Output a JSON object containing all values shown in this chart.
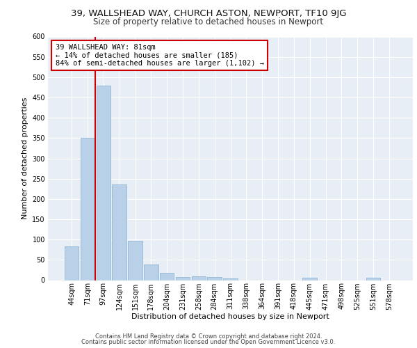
{
  "title1": "39, WALLSHEAD WAY, CHURCH ASTON, NEWPORT, TF10 9JG",
  "title2": "Size of property relative to detached houses in Newport",
  "xlabel": "Distribution of detached houses by size in Newport",
  "ylabel": "Number of detached properties",
  "categories": [
    "44sqm",
    "71sqm",
    "97sqm",
    "124sqm",
    "151sqm",
    "178sqm",
    "204sqm",
    "231sqm",
    "258sqm",
    "284sqm",
    "311sqm",
    "338sqm",
    "364sqm",
    "391sqm",
    "418sqm",
    "445sqm",
    "471sqm",
    "498sqm",
    "525sqm",
    "551sqm",
    "578sqm"
  ],
  "values": [
    83,
    350,
    480,
    235,
    97,
    38,
    18,
    8,
    9,
    8,
    5,
    0,
    0,
    0,
    0,
    6,
    0,
    0,
    0,
    6,
    0
  ],
  "bar_color": "#b8d0e8",
  "bar_edge_color": "#8ab0ce",
  "vline_x": 1.5,
  "vline_color": "#cc0000",
  "annotation_line1": "39 WALLSHEAD WAY: 81sqm",
  "annotation_line2": "← 14% of detached houses are smaller (185)",
  "annotation_line3": "84% of semi-detached houses are larger (1,102) →",
  "annotation_box_color": "#ffffff",
  "annotation_box_edgecolor": "#cc0000",
  "ylim": [
    0,
    600
  ],
  "yticks": [
    0,
    50,
    100,
    150,
    200,
    250,
    300,
    350,
    400,
    450,
    500,
    550,
    600
  ],
  "background_color": "#e8eef5",
  "footnote1": "Contains HM Land Registry data © Crown copyright and database right 2024.",
  "footnote2": "Contains public sector information licensed under the Open Government Licence v3.0.",
  "title1_fontsize": 9.5,
  "title2_fontsize": 8.5,
  "xlabel_fontsize": 8,
  "ylabel_fontsize": 8,
  "tick_fontsize": 7,
  "annotation_fontsize": 7.5,
  "footnote_fontsize": 6
}
